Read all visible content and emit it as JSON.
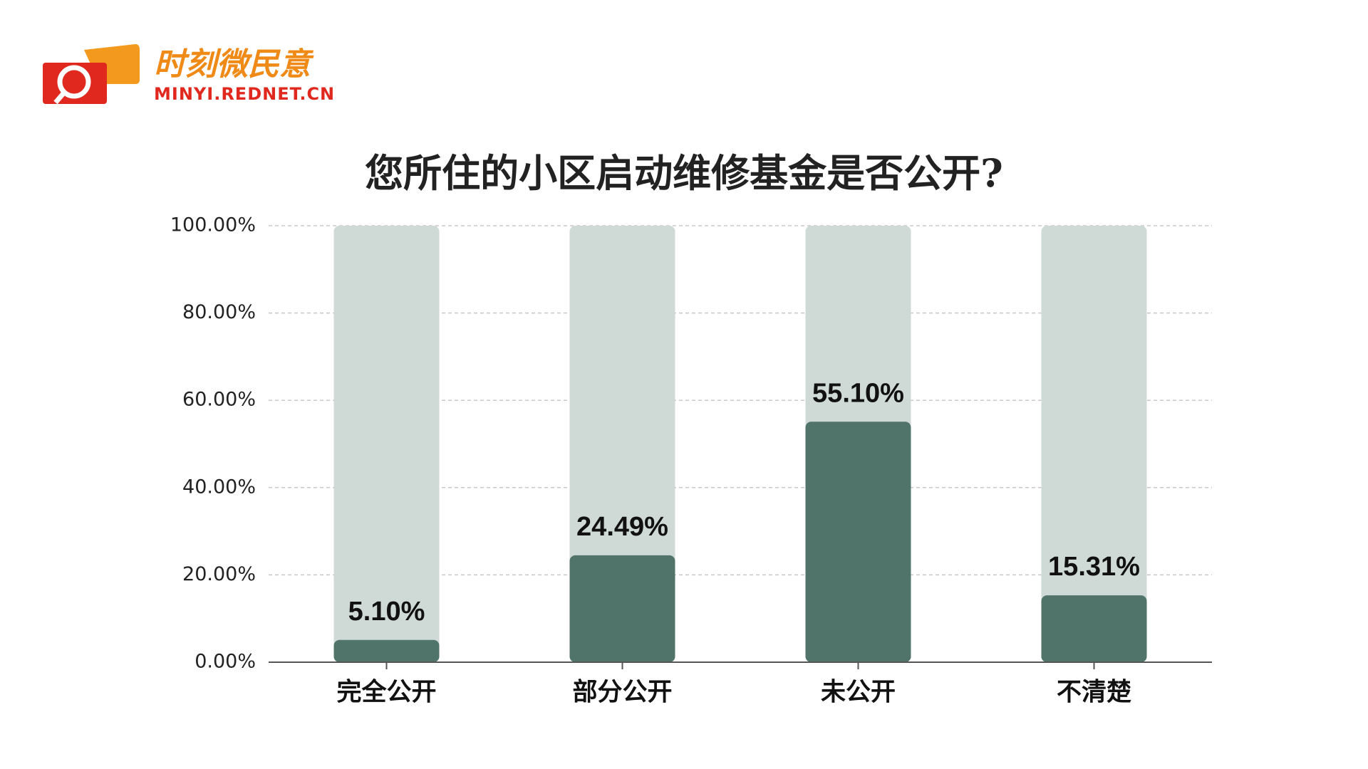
{
  "logo": {
    "name": "时刻微民意",
    "site": "MINYI.REDNET.CN"
  },
  "chart_data": {
    "type": "bar",
    "title": "您所住的小区启动维修基金是否公开?",
    "categories": [
      "完全公开",
      "部分公开",
      "未公开",
      "不清楚"
    ],
    "values": [
      5.1,
      24.49,
      55.1,
      15.31
    ],
    "value_labels": [
      "5.10%",
      "24.49%",
      "55.10%",
      "15.31%"
    ],
    "color": "#50736a",
    "track_color": "#cfd9d6",
    "ylim": [
      0,
      100
    ],
    "yticks": [
      {
        "value": 0,
        "label": "0.00%"
      },
      {
        "value": 20,
        "label": "20.00%"
      },
      {
        "value": 40,
        "label": "40.00%"
      },
      {
        "value": 60,
        "label": "60.00%"
      },
      {
        "value": 80,
        "label": "80.00%"
      },
      {
        "value": 100,
        "label": "100.00%"
      }
    ],
    "grid": true
  }
}
